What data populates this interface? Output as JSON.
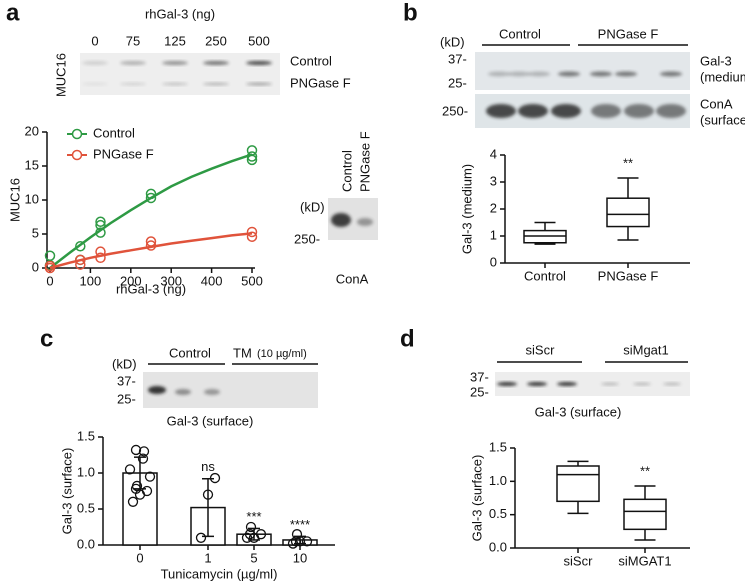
{
  "panels": [
    {
      "letter": "a",
      "blot": {
        "title": "rhGal-3 (ng)",
        "lanes": [
          "0",
          "75",
          "125",
          "250",
          "500"
        ],
        "rows": [
          "Control",
          "PNGase F"
        ],
        "protein": "MUC16"
      },
      "inset": {
        "lanes": [
          "Control",
          "PNGase F"
        ],
        "unit": "(kD)",
        "marker": "250-",
        "label": "ConA"
      }
    },
    {
      "letter": "b",
      "blot": {
        "unit": "(kD)",
        "groups": [
          "Control",
          "PNGase F"
        ],
        "markers": [
          "37-",
          "25-",
          "250-"
        ],
        "rows": [
          [
            "Gal-3",
            "(medium)"
          ],
          [
            "ConA",
            "(surface)"
          ]
        ]
      }
    },
    {
      "letter": "c",
      "blot": {
        "unit": "(kD)",
        "groups": [
          "Control",
          "TM"
        ],
        "group_note": "(10 µg/ml)",
        "markers": [
          "37-",
          "25-"
        ],
        "label": "Gal-3 (surface)"
      }
    },
    {
      "letter": "d",
      "blot": {
        "groups": [
          "siScr",
          "siMgat1"
        ],
        "markers": [
          "37-",
          "25-"
        ],
        "label": "Gal-3 (surface)"
      }
    }
  ],
  "chart_data": [
    {
      "type": "scatter",
      "xlabel": "rhGal-3 (ng)",
      "ylabel": "MUC16",
      "xlim": [
        0,
        500
      ],
      "ylim": [
        0,
        20
      ],
      "xticks": [
        0,
        100,
        200,
        300,
        400,
        500
      ],
      "yticks": [
        0,
        5,
        10,
        15,
        20
      ],
      "legend": "upper left",
      "series": [
        {
          "name": "Control",
          "color": "#2e9a44",
          "x": [
            0,
            0,
            75,
            75,
            125,
            125,
            125,
            250,
            250,
            500,
            500,
            500
          ],
          "values": [
            0.4,
            1.8,
            1.2,
            3.2,
            5.2,
            6.3,
            6.8,
            10.3,
            10.9,
            15.9,
            16.4,
            17.3
          ],
          "fit": {
            "x": [
              0,
              50,
              100,
              150,
              200,
              250,
              300,
              350,
              400,
              450,
              500
            ],
            "values": [
              0,
              2.3,
              4.5,
              6.6,
              8.5,
              10.3,
              12,
              13.4,
              14.6,
              15.7,
              16.7
            ]
          }
        },
        {
          "name": "PNGase F",
          "color": "#e0533b",
          "x": [
            0,
            0,
            75,
            75,
            125,
            125,
            250,
            250,
            500,
            500
          ],
          "values": [
            0,
            0.3,
            0.5,
            1.2,
            1.5,
            2.4,
            3.3,
            3.9,
            4.6,
            5.3
          ],
          "fit": {
            "x": [
              0,
              50,
              100,
              150,
              200,
              250,
              300,
              350,
              400,
              450,
              500
            ],
            "values": [
              0,
              0.8,
              1.5,
              2.1,
              2.6,
              3.1,
              3.6,
              4.0,
              4.4,
              4.8,
              5.1
            ]
          }
        }
      ]
    },
    {
      "type": "box",
      "ylabel": "Gal-3 (medium)",
      "categories": [
        "Control",
        "PNGase F"
      ],
      "ylim": [
        0,
        4
      ],
      "yticks": [
        0,
        1,
        2,
        3,
        4
      ],
      "boxes": [
        {
          "min": 0.7,
          "q1": 0.75,
          "median": 1.0,
          "q3": 1.2,
          "max": 1.5
        },
        {
          "min": 0.85,
          "q1": 1.35,
          "median": 1.8,
          "q3": 2.4,
          "max": 3.15
        }
      ],
      "annotations": [
        null,
        "**"
      ]
    },
    {
      "type": "bar",
      "xlabel": "Tunicamycin (µg/ml)",
      "ylabel": "Gal-3 (surface)",
      "categories": [
        "0",
        "1",
        "5",
        "10"
      ],
      "values": [
        1.0,
        0.52,
        0.15,
        0.07
      ],
      "errors": [
        0.22,
        0.4,
        0.08,
        0.05
      ],
      "points": [
        [
          0.6,
          0.7,
          0.75,
          0.78,
          0.82,
          0.95,
          1.05,
          1.2,
          1.3,
          1.32
        ],
        [
          0.1,
          0.7,
          0.93
        ],
        [
          0.1,
          0.1,
          0.15,
          0.15,
          0.25
        ],
        [
          0.02,
          0.05,
          0.05,
          0.05,
          0.15
        ]
      ],
      "ylim": [
        0,
        1.5
      ],
      "yticks": [
        {
          "value": 0,
          "label": "0.0"
        },
        0.5,
        {
          "value": 1,
          "label": "1.0"
        },
        1.5
      ],
      "annotations": [
        null,
        "ns",
        "***",
        "****"
      ]
    },
    {
      "type": "box",
      "ylabel": "Gal-3 (surface)",
      "categories": [
        "siScr",
        "siMGAT1"
      ],
      "ylim": [
        0,
        1.5
      ],
      "yticks": [
        {
          "value": 0,
          "label": "0.0"
        },
        0.5,
        {
          "value": 1,
          "label": "1.0"
        },
        1.5
      ],
      "boxes": [
        {
          "min": 0.52,
          "q1": 0.7,
          "median": 1.1,
          "q3": 1.23,
          "max": 1.3
        },
        {
          "min": 0.12,
          "q1": 0.28,
          "median": 0.55,
          "q3": 0.73,
          "max": 0.93
        }
      ],
      "annotations": [
        null,
        "**"
      ]
    }
  ]
}
